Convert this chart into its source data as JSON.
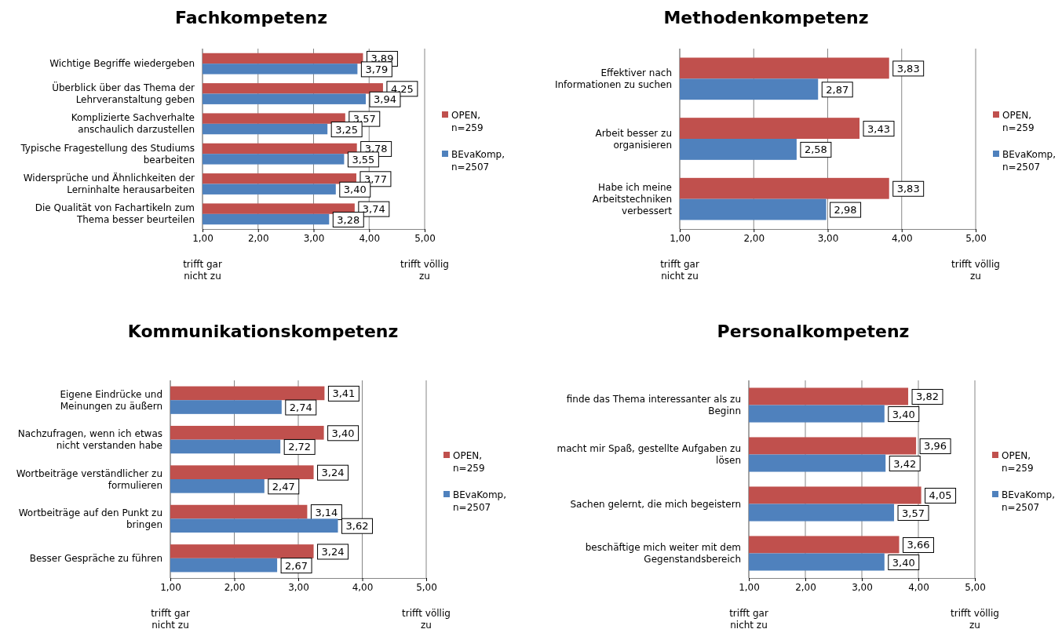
{
  "chart_data": [
    {
      "type": "bar",
      "orientation": "horizontal",
      "title": "Fachkompetenz",
      "categories": [
        "Wichtige Begriffe wiedergeben",
        "Überblick über das Thema der Lehrveranstaltung geben",
        "Komplizierte Sachverhalte anschaulich darzustellen",
        "Typische Fragestellung des Studiums bearbeiten",
        "Widersprüche und Ähnlichkeiten der Lerninhalte herausarbeiten",
        "Die Qualität von Fachartikeln zum Thema besser beurteilen"
      ],
      "series": [
        {
          "name": "OPEN, n=259",
          "color": "#c0504d",
          "values": [
            3.89,
            4.25,
            3.57,
            3.78,
            3.77,
            3.74
          ],
          "value_labels": [
            "3,89",
            "4,25",
            "3,57",
            "3,78",
            "3,77",
            "3,74"
          ]
        },
        {
          "name": "BEvaKomp, n=2507",
          "color": "#4f81bd",
          "values": [
            3.79,
            3.94,
            3.25,
            3.55,
            3.4,
            3.28
          ],
          "value_labels": [
            "3,79",
            "3,94",
            "3,25",
            "3,55",
            "3,40",
            "3,28"
          ]
        }
      ],
      "xlim": [
        1,
        5
      ],
      "xticks": [
        {
          "value": 1,
          "label": "1,00"
        },
        {
          "value": 2,
          "label": "2,00"
        },
        {
          "value": 3,
          "label": "3,00"
        },
        {
          "value": 4,
          "label": "4,00"
        },
        {
          "value": 5,
          "label": "5,00"
        }
      ],
      "grid": "x",
      "legend": "right",
      "annotations": [
        "trifft gar nicht zu",
        "trifft völlig zu"
      ]
    },
    {
      "type": "bar",
      "orientation": "horizontal",
      "title": "Methodenkompetenz",
      "categories": [
        "Effektiver nach Informationen zu suchen",
        "Arbeit besser zu organisieren",
        "Habe ich meine Arbeitstechniken verbessert"
      ],
      "series": [
        {
          "name": "OPEN, n=259",
          "color": "#c0504d",
          "values": [
            3.83,
            3.43,
            3.83
          ],
          "value_labels": [
            "3,83",
            "3,43",
            "3,83"
          ]
        },
        {
          "name": "BEvaKomp, n=2507",
          "color": "#4f81bd",
          "values": [
            2.87,
            2.58,
            2.98
          ],
          "value_labels": [
            "2,87",
            "2,58",
            "2,98"
          ]
        }
      ],
      "xlim": [
        1,
        5
      ],
      "xticks": [
        {
          "value": 1,
          "label": "1,00"
        },
        {
          "value": 2,
          "label": "2,00"
        },
        {
          "value": 3,
          "label": "3,00"
        },
        {
          "value": 4,
          "label": "4,00"
        },
        {
          "value": 5,
          "label": "5,00"
        }
      ],
      "grid": "x",
      "legend": "right",
      "annotations": [
        "trifft gar nicht zu",
        "trifft völlig zu"
      ]
    },
    {
      "type": "bar",
      "orientation": "horizontal",
      "title": "Kommunikationskompetenz",
      "categories": [
        "Eigene Eindrücke und Meinungen zu äußern",
        "Nachzufragen, wenn ich etwas nicht verstanden habe",
        "Wortbeiträge verständlicher zu formulieren",
        "Wortbeiträge auf den Punkt zu bringen",
        "Besser Gespräche zu führen"
      ],
      "series": [
        {
          "name": "OPEN, n=259",
          "color": "#c0504d",
          "values": [
            3.41,
            3.4,
            3.24,
            3.14,
            3.24
          ],
          "value_labels": [
            "3,41",
            "3,40",
            "3,24",
            "3,14",
            "3,24"
          ]
        },
        {
          "name": "BEvaKomp, n=2507",
          "color": "#4f81bd",
          "values": [
            2.74,
            2.72,
            2.47,
            3.62,
            2.67
          ],
          "value_labels": [
            "2,74",
            "2,72",
            "2,47",
            "3,62",
            "2,67"
          ]
        }
      ],
      "xlim": [
        1,
        5
      ],
      "xticks": [
        {
          "value": 1,
          "label": "1,00"
        },
        {
          "value": 2,
          "label": "2,00"
        },
        {
          "value": 3,
          "label": "3,00"
        },
        {
          "value": 4,
          "label": "4,00"
        },
        {
          "value": 5,
          "label": "5,00"
        }
      ],
      "grid": "x",
      "legend": "right",
      "annotations": [
        "trifft gar nicht zu",
        "trifft völlig zu"
      ]
    },
    {
      "type": "bar",
      "orientation": "horizontal",
      "title": "Personalkompetenz",
      "categories": [
        "finde das Thema interessanter als zu Beginn",
        "macht mir Spaß, gestellte Aufgaben zu lösen",
        "Sachen gelernt, die mich begeistern",
        "beschäftige mich weiter mit dem Gegenstandsbereich"
      ],
      "series": [
        {
          "name": "OPEN, n=259",
          "color": "#c0504d",
          "values": [
            3.82,
            3.96,
            4.05,
            3.66
          ],
          "value_labels": [
            "3,82",
            "3,96",
            "4,05",
            "3,66"
          ]
        },
        {
          "name": "BEvaKomp, n=2507",
          "color": "#4f81bd",
          "values": [
            3.4,
            3.42,
            3.57,
            3.4
          ],
          "value_labels": [
            "3,40",
            "3,42",
            "3,57",
            "3,40"
          ]
        }
      ],
      "xlim": [
        1,
        5
      ],
      "xticks": [
        {
          "value": 1,
          "label": "1,00"
        },
        {
          "value": 2,
          "label": "2,00"
        },
        {
          "value": 3,
          "label": "3,00"
        },
        {
          "value": 4,
          "label": "4,00"
        },
        {
          "value": 5,
          "label": "5,00"
        }
      ],
      "grid": "x",
      "legend": "right",
      "annotations": [
        "trifft gar nicht zu",
        "trifft völlig zu"
      ]
    }
  ]
}
